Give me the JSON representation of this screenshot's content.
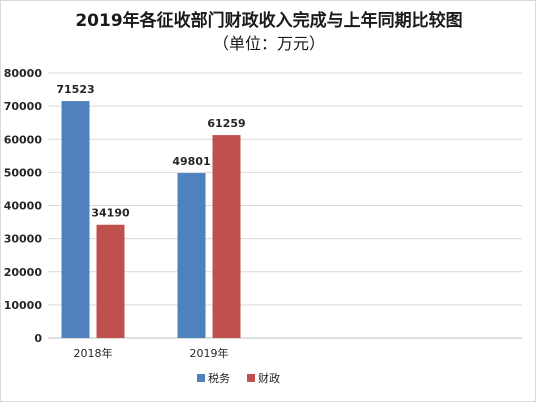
{
  "chart_data": {
    "type": "bar",
    "title": "2019年各征收部门财政收入完成与上年同期比较图",
    "subtitle": "（单位：万元）",
    "categories": [
      "2018年",
      "2019年"
    ],
    "series": [
      {
        "name": "税务",
        "values": [
          71523,
          49801
        ],
        "color": "#4f81bd"
      },
      {
        "name": "财政",
        "values": [
          34190,
          61259
        ],
        "color": "#c0504d"
      }
    ],
    "ylim": [
      0,
      80000
    ],
    "yticks": [
      0,
      10000,
      20000,
      30000,
      40000,
      50000,
      60000,
      70000,
      80000
    ],
    "grid": true,
    "legend": "bottom",
    "xlabel": "",
    "ylabel": ""
  }
}
